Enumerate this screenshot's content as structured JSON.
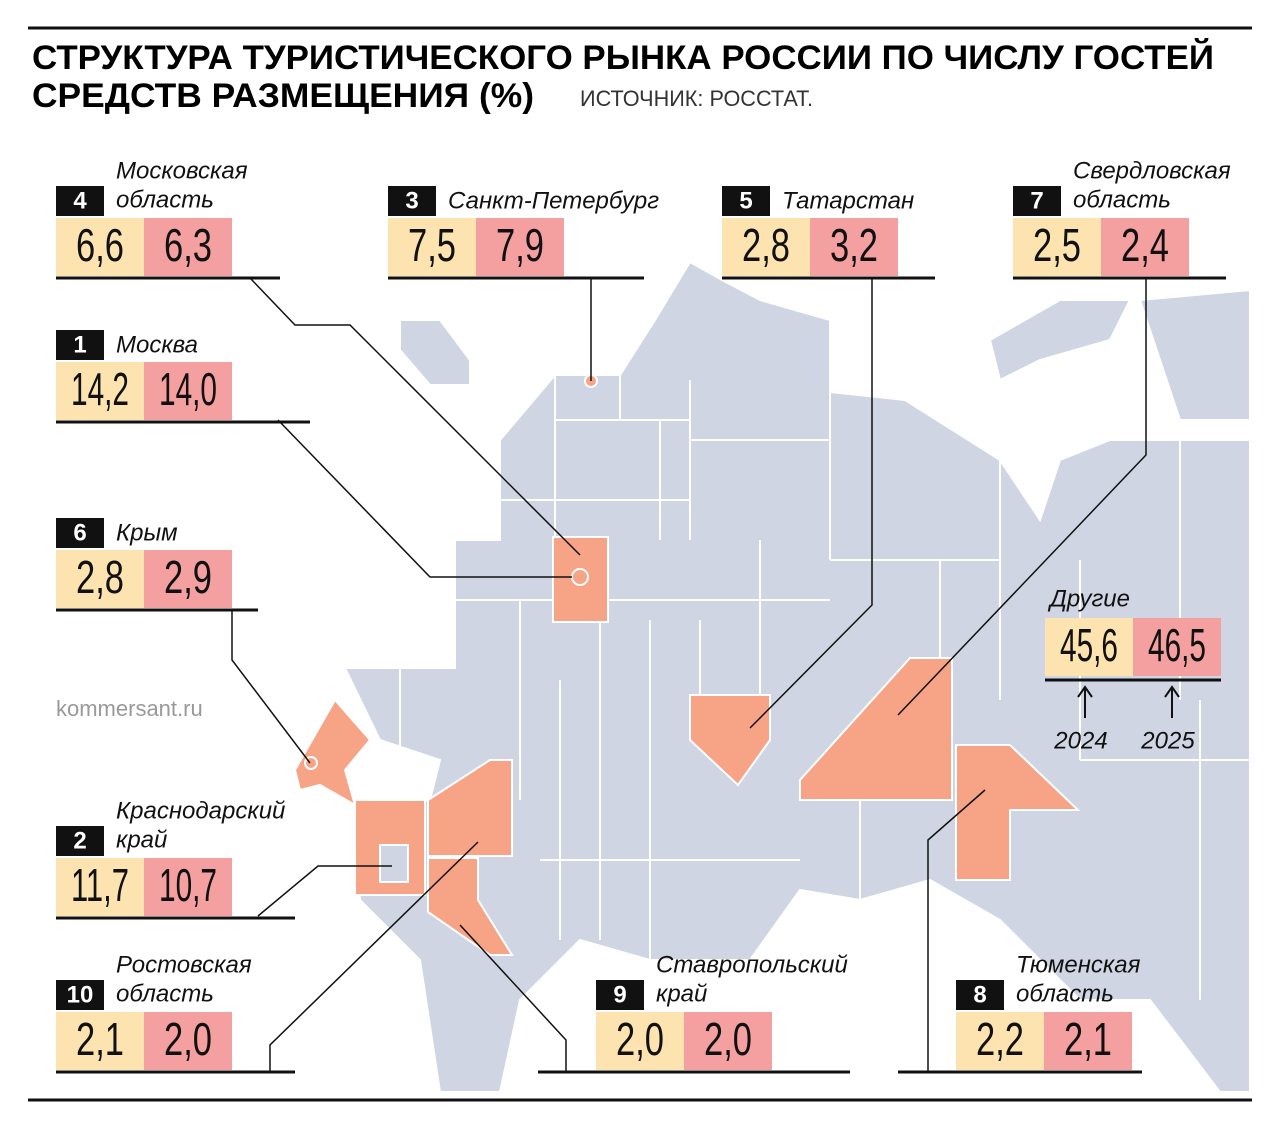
{
  "header": {
    "title": [
      "СТРУКТУРА ТУРИСТИЧЕСКОГО РЫНКА РОССИИ ПО ЧИСЛУ ГОСТЕЙ",
      "СРЕДСТВ РАЗМЕЩЕНИЯ (%)"
    ],
    "source": "ИСТОЧНИК: РОССТАТ."
  },
  "credit": "kommersant.ru",
  "regions": [
    {
      "rank": "4",
      "name": [
        "Московская",
        "область"
      ],
      "v2024": "6,6",
      "v2025": "6,3"
    },
    {
      "rank": "3",
      "name": [
        "Санкт-Петербург"
      ],
      "v2024": "7,5",
      "v2025": "7,9"
    },
    {
      "rank": "5",
      "name": [
        "Татарстан"
      ],
      "v2024": "2,8",
      "v2025": "3,2"
    },
    {
      "rank": "7",
      "name": [
        "Свердловская",
        "область"
      ],
      "v2024": "2,5",
      "v2025": "2,4"
    },
    {
      "rank": "1",
      "name": [
        "Москва"
      ],
      "v2024": "14,2",
      "v2025": "14,0"
    },
    {
      "rank": "6",
      "name": [
        "Крым"
      ],
      "v2024": "2,8",
      "v2025": "2,9"
    },
    {
      "rank": "2",
      "name": [
        "Краснодарский",
        "край"
      ],
      "v2024": "11,7",
      "v2025": "10,7"
    },
    {
      "rank": "10",
      "name": [
        "Ростовская",
        "область"
      ],
      "v2024": "2,1",
      "v2025": "2,0"
    },
    {
      "rank": "9",
      "name": [
        "Ставропольский",
        "край"
      ],
      "v2024": "2,0",
      "v2025": "2,0"
    },
    {
      "rank": "8",
      "name": [
        "Тюменская",
        "область"
      ],
      "v2024": "2,2",
      "v2025": "2,1"
    }
  ],
  "others": {
    "label": "Другие",
    "v2024": "45,6",
    "v2025": "46,5",
    "years": [
      "2024",
      "2025"
    ]
  }
}
